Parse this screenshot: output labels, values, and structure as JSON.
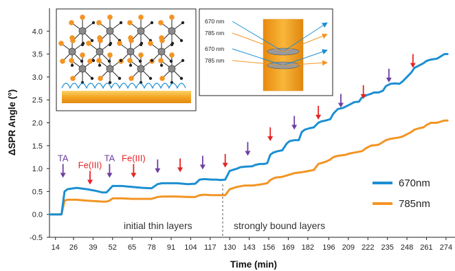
{
  "chart_data": {
    "type": "line",
    "xlabel": "Time (min)",
    "ylabel": "ΔSPR Angle (°)",
    "ylim": [
      -0.5,
      4.5
    ],
    "xlim": [
      10,
      280
    ],
    "x_ticks": [
      "14",
      "26",
      "39",
      "52",
      "65",
      "78",
      "91",
      "104",
      "117",
      "130",
      "143",
      "156",
      "169",
      "182",
      "196",
      "209",
      "222",
      "235",
      "248",
      "261",
      "274"
    ],
    "y_ticks": [
      "-0.5",
      "0.0",
      "0.5",
      "1.0",
      "1.5",
      "2.0",
      "2.5",
      "3.0",
      "3.5",
      "4.0"
    ],
    "grid": false,
    "legend_position": "right",
    "colors": {
      "670nm": "#1b8fd2",
      "785nm": "#f39423",
      "TA": "#6d3fa0",
      "Fe(III)": "#e52325"
    },
    "series": [
      {
        "name": "670nm",
        "x": [
          10,
          14,
          18,
          20,
          22,
          28,
          35,
          40,
          45,
          48,
          50,
          52,
          58,
          65,
          72,
          78,
          82,
          85,
          95,
          102,
          107,
          110,
          113,
          118,
          121,
          124,
          127,
          130,
          135,
          137,
          140,
          145,
          147,
          150,
          153,
          155,
          157,
          159,
          162,
          165,
          167,
          168,
          170,
          173,
          176,
          178,
          180,
          183,
          186,
          189,
          191,
          194,
          197,
          199,
          202,
          205,
          207,
          210,
          213,
          216,
          218,
          221,
          224,
          226,
          229,
          232,
          234,
          237,
          240,
          243,
          245,
          248,
          251,
          253,
          256,
          259,
          261,
          264,
          268,
          273,
          275
        ],
        "values": [
          0.0,
          0.0,
          0.0,
          0.5,
          0.55,
          0.58,
          0.55,
          0.52,
          0.48,
          0.48,
          0.55,
          0.62,
          0.62,
          0.6,
          0.58,
          0.57,
          0.66,
          0.68,
          0.68,
          0.66,
          0.67,
          0.76,
          0.77,
          0.76,
          0.76,
          0.75,
          0.76,
          0.95,
          1.0,
          1.03,
          1.04,
          1.05,
          1.08,
          1.1,
          1.1,
          1.12,
          1.3,
          1.35,
          1.38,
          1.4,
          1.5,
          1.55,
          1.6,
          1.62,
          1.62,
          1.8,
          1.85,
          1.88,
          1.9,
          2.0,
          2.03,
          2.05,
          2.08,
          2.2,
          2.3,
          2.32,
          2.35,
          2.4,
          2.45,
          2.46,
          2.55,
          2.6,
          2.63,
          2.66,
          2.66,
          2.7,
          2.8,
          2.85,
          2.86,
          2.85,
          2.9,
          3.0,
          3.1,
          3.2,
          3.25,
          3.3,
          3.35,
          3.38,
          3.4,
          3.5,
          3.5
        ]
      },
      {
        "name": "785nm",
        "x": [
          10,
          14,
          18,
          20,
          22,
          28,
          35,
          40,
          45,
          48,
          50,
          52,
          58,
          65,
          72,
          78,
          82,
          85,
          95,
          102,
          107,
          110,
          113,
          118,
          121,
          124,
          127,
          130,
          135,
          140,
          145,
          150,
          155,
          157,
          160,
          165,
          168,
          173,
          178,
          183,
          186,
          189,
          194,
          197,
          199,
          202,
          207,
          210,
          213,
          218,
          221,
          224,
          229,
          232,
          234,
          237,
          243,
          245,
          248,
          251,
          253,
          256,
          259,
          261,
          264,
          268,
          273,
          275
        ],
        "values": [
          0.0,
          0.0,
          0.0,
          0.3,
          0.32,
          0.32,
          0.3,
          0.29,
          0.28,
          0.28,
          0.3,
          0.35,
          0.35,
          0.34,
          0.34,
          0.34,
          0.38,
          0.39,
          0.39,
          0.38,
          0.38,
          0.42,
          0.43,
          0.42,
          0.42,
          0.42,
          0.42,
          0.55,
          0.6,
          0.63,
          0.63,
          0.65,
          0.68,
          0.75,
          0.8,
          0.82,
          0.85,
          0.9,
          0.92,
          0.95,
          0.97,
          1.1,
          1.15,
          1.2,
          1.25,
          1.28,
          1.3,
          1.33,
          1.35,
          1.38,
          1.45,
          1.5,
          1.52,
          1.58,
          1.62,
          1.65,
          1.68,
          1.7,
          1.75,
          1.8,
          1.85,
          1.88,
          1.9,
          1.95,
          2.0,
          2.0,
          2.05,
          2.05
        ]
      }
    ],
    "annotations": {
      "initial": "initial thin layers",
      "strong": "strongly bound layers",
      "ta_label": "TA",
      "fe_label": "Fe(III)"
    },
    "arrows": [
      {
        "x": 19,
        "y": 0.8,
        "kind": "TA",
        "label": "TA"
      },
      {
        "x": 37,
        "y": 0.65,
        "kind": "Fe",
        "label": "Fe(III)"
      },
      {
        "x": 50,
        "y": 0.8,
        "kind": "TA",
        "label": "TA"
      },
      {
        "x": 66,
        "y": 0.8,
        "kind": "Fe",
        "label": "Fe(III)"
      },
      {
        "x": 82,
        "y": 0.9,
        "kind": "TA"
      },
      {
        "x": 97,
        "y": 0.92,
        "kind": "Fe"
      },
      {
        "x": 112,
        "y": 0.98,
        "kind": "TA"
      },
      {
        "x": 127,
        "y": 1.02,
        "kind": "Fe"
      },
      {
        "x": 142,
        "y": 1.28,
        "kind": "TA"
      },
      {
        "x": 157,
        "y": 1.6,
        "kind": "Fe"
      },
      {
        "x": 173,
        "y": 1.85,
        "kind": "TA"
      },
      {
        "x": 189,
        "y": 2.07,
        "kind": "Fe"
      },
      {
        "x": 204,
        "y": 2.33,
        "kind": "TA"
      },
      {
        "x": 219,
        "y": 2.52,
        "kind": "Fe"
      },
      {
        "x": 236,
        "y": 2.88,
        "kind": "TA"
      },
      {
        "x": 252,
        "y": 3.2,
        "kind": "Fe"
      }
    ],
    "inset_right": {
      "labels": [
        "670 nm",
        "785 nm",
        "670 nm",
        "785 nm"
      ]
    }
  }
}
